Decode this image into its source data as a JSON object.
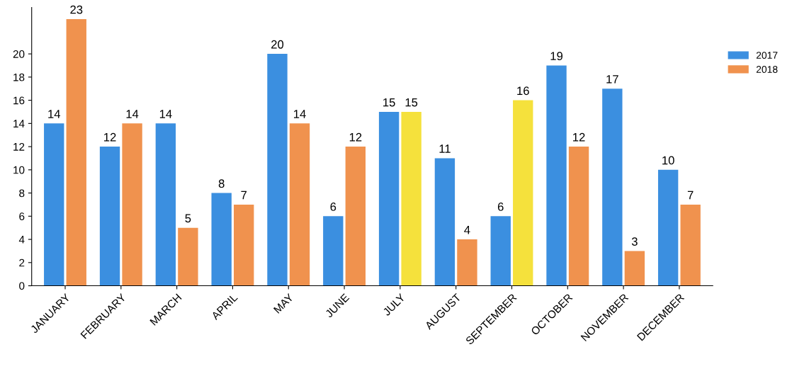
{
  "chart_data": {
    "type": "bar",
    "categories": [
      "JANUARY",
      "FEBRUARY",
      "MARCH",
      "APRIL",
      "MAY",
      "JUNE",
      "JULY",
      "AUGUST",
      "SEPTEMBER",
      "OCTOBER",
      "NOVEMBER",
      "DECEMBER"
    ],
    "series": [
      {
        "name": "2017",
        "color": "#3b8fe0",
        "values": [
          14,
          12,
          14,
          8,
          20,
          6,
          15,
          11,
          6,
          19,
          17,
          10
        ]
      },
      {
        "name": "2018",
        "color": "#f0924e",
        "colors": [
          "#f0924e",
          "#f0924e",
          "#f0924e",
          "#f0924e",
          "#f0924e",
          "#f0924e",
          "#f5e13c",
          "#f0924e",
          "#f5e13c",
          "#f0924e",
          "#f0924e",
          "#f0924e"
        ],
        "values": [
          23,
          14,
          5,
          7,
          14,
          12,
          15,
          4,
          16,
          12,
          3,
          7
        ]
      }
    ],
    "ylim": [
      0,
      24
    ],
    "yticks": [
      0,
      2,
      4,
      6,
      8,
      10,
      12,
      14,
      16,
      18,
      20
    ],
    "data_labels": true,
    "grid": false,
    "legend": "right"
  }
}
